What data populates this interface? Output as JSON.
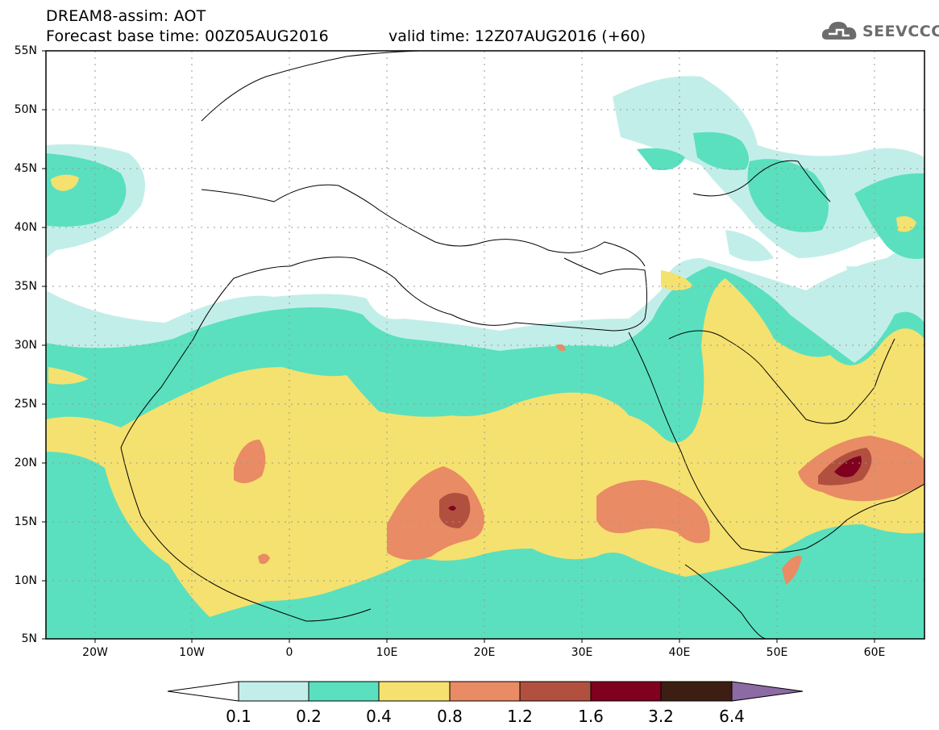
{
  "title": {
    "line1": "DREAM8-assim: AOT",
    "line2_left": "Forecast base time: 00Z05AUG2016",
    "line2_right": "valid time: 12Z07AUG2016 (+60)"
  },
  "logo": {
    "text": "SEEVCCC",
    "icon": "cloud-icon"
  },
  "latitude_labels": [
    "55N",
    "50N",
    "45N",
    "40N",
    "35N",
    "30N",
    "25N",
    "20N",
    "15N",
    "10N",
    "5N"
  ],
  "longitude_labels": [
    "20W",
    "10W",
    "0",
    "10E",
    "20E",
    "30E",
    "40E",
    "50E",
    "60E"
  ],
  "colorbar": {
    "ticks": [
      "0.1",
      "0.2",
      "0.4",
      "0.8",
      "1.2",
      "1.6",
      "3.2",
      "6.4"
    ],
    "colors": [
      "#ffffff",
      "#c2eee9",
      "#5ae0be",
      "#f5e16f",
      "#e98b64",
      "#b1503f",
      "#800020",
      "#3c1f12",
      "#8c6aa4"
    ]
  },
  "map_extent": {
    "lon": [
      -25,
      65
    ],
    "lat": [
      5,
      55
    ]
  }
}
